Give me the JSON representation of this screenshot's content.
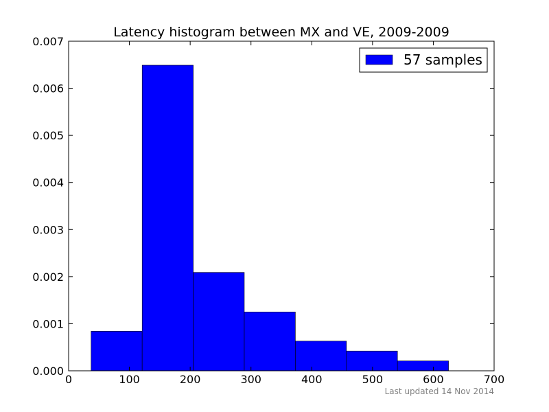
{
  "chart_data": {
    "type": "bar",
    "title": "Latency histogram between MX and VE, 2009-2009",
    "xlabel": "",
    "ylabel": "",
    "xlim": [
      0,
      700
    ],
    "ylim": [
      0,
      0.007
    ],
    "x_ticks": [
      0,
      100,
      200,
      300,
      400,
      500,
      600,
      700
    ],
    "y_ticks": [
      "0.000",
      "0.001",
      "0.002",
      "0.003",
      "0.004",
      "0.005",
      "0.006",
      "0.007"
    ],
    "bins": [
      {
        "x0": 37,
        "x1": 121,
        "value": 0.00084
      },
      {
        "x0": 121,
        "x1": 205,
        "value": 0.00649
      },
      {
        "x0": 205,
        "x1": 289,
        "value": 0.00209
      },
      {
        "x0": 289,
        "x1": 373,
        "value": 0.00125
      },
      {
        "x0": 373,
        "x1": 457,
        "value": 0.00063
      },
      {
        "x0": 457,
        "x1": 541,
        "value": 0.00042
      },
      {
        "x0": 541,
        "x1": 625,
        "value": 0.00021
      }
    ],
    "series": [
      {
        "name": "57 samples",
        "color": "#0000ff"
      }
    ],
    "legend_position": "top-right",
    "grid": false
  },
  "footer": {
    "text": "Last updated 14 Nov 2014"
  }
}
